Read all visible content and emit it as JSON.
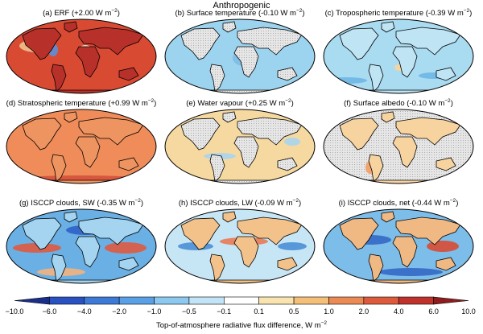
{
  "figure": {
    "suptitle": "Anthropogenic",
    "colorbar": {
      "label": "Top-of-atmosphere radiative flux difference, W m",
      "label_exp": "−2",
      "ticks": [
        "−10.0",
        "−6.0",
        "−4.0",
        "−2.0",
        "−1.0",
        "−0.5",
        "−0.1",
        "0.1",
        "0.5",
        "1.0",
        "2.0",
        "4.0",
        "6.0",
        "10.0"
      ],
      "colors": [
        "#1a2f8c",
        "#2951c2",
        "#3d7ad8",
        "#5aa0e6",
        "#8cc8f0",
        "#c2e4f6",
        "#ffffff",
        "#f9e3ae",
        "#f4bf78",
        "#ec8a55",
        "#dd5a3c",
        "#c0322c",
        "#8f1d1d"
      ]
    },
    "panels": [
      {
        "title": "(a) ERF (+2.00 W m",
        "exp": "−2",
        "close": ")",
        "style": "erf"
      },
      {
        "title": "(b) Surface temperature (-0.10 W m",
        "exp": "−2",
        "close": ")",
        "style": "surface"
      },
      {
        "title": "(c) Tropospheric temperature (-0.39 W m",
        "exp": "−2",
        "close": ")",
        "style": "tropo"
      },
      {
        "title": "(d) Stratospheric temperature (+0.99 W m",
        "exp": "−2",
        "close": ")",
        "style": "strato"
      },
      {
        "title": "(e) Water vapour (+0.25 W m",
        "exp": "−2",
        "close": ")",
        "style": "water"
      },
      {
        "title": "(f) Surface albedo (-0.10 W m",
        "exp": "−2",
        "close": ")",
        "style": "albedo"
      },
      {
        "title": "(g) ISCCP clouds, SW (-0.35 W m",
        "exp": "−2",
        "close": ")",
        "style": "sw"
      },
      {
        "title": "(h) ISCCP clouds, LW (-0.09 W m",
        "exp": "−2",
        "close": ")",
        "style": "lw"
      },
      {
        "title": "(i) ISCCP clouds, net (-0.44 W m",
        "exp": "−2",
        "close": ")",
        "style": "net"
      }
    ]
  }
}
